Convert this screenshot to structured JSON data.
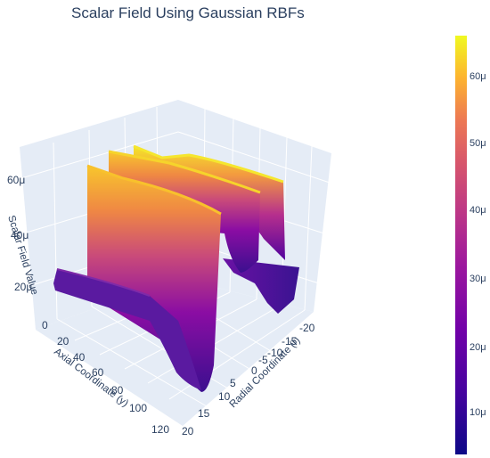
{
  "chart_data": {
    "type": "surface",
    "title": "Scalar Field Using Gaussian RBFs",
    "axes": {
      "x": {
        "label": "Radial Coordinate (r)",
        "range": [
          -20,
          20
        ],
        "ticks": [
          "-20",
          "-15",
          "-10",
          "-5",
          "0",
          "5",
          "10",
          "15",
          "20"
        ]
      },
      "y": {
        "label": "Axial Coordinate (y)",
        "range": [
          0,
          125
        ],
        "ticks": [
          "0",
          "20",
          "40",
          "60",
          "80",
          "100",
          "120"
        ]
      },
      "z": {
        "label": "Scalar Field Value",
        "ticks": [
          "20μ",
          "40μ",
          "60μ"
        ]
      }
    },
    "colorbar": {
      "colorscale": "plasma",
      "range": [
        0,
        68
      ],
      "ticks": [
        "10μ",
        "20μ",
        "30μ",
        "40μ",
        "50μ",
        "60μ"
      ]
    },
    "surface_description": {
      "ridges_along_axial": [
        {
          "r_center": -13,
          "peak_value_u": 61
        },
        {
          "r_center": -5,
          "peak_value_u": 64
        },
        {
          "r_center": 3,
          "peak_value_u": 64
        },
        {
          "r_center": 11,
          "peak_value_u": 61
        }
      ],
      "front_dip_near_axial_start": true,
      "value_units": "μ"
    },
    "grid": true
  }
}
